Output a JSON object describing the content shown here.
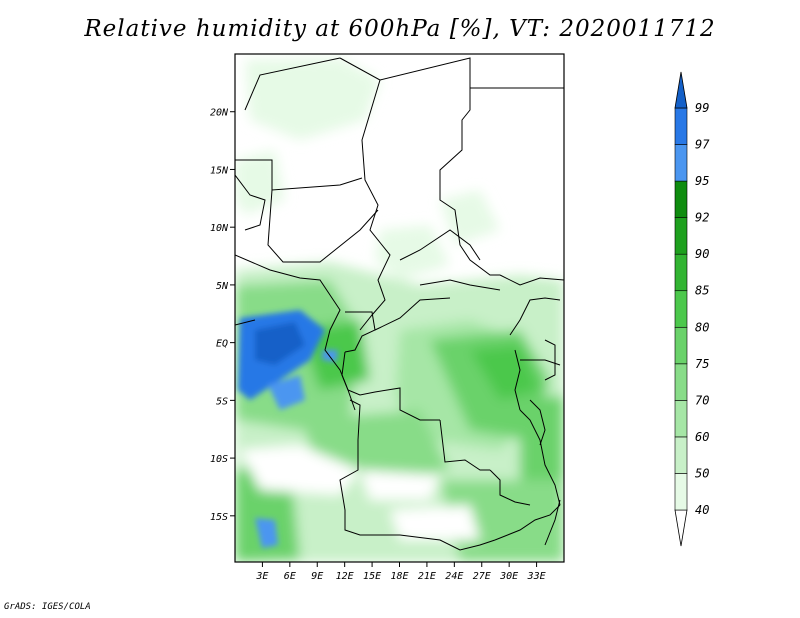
{
  "title": "Relative humidity at 600hPa [%], VT: 2020011712",
  "credit": "GrADS: IGES/COLA",
  "map": {
    "lon_range": [
      0,
      36
    ],
    "lat_range": [
      -19,
      25
    ],
    "lat_ticks": [
      "20N",
      "15N",
      "10N",
      "5N",
      "EQ",
      "5S",
      "10S",
      "15S"
    ],
    "lon_ticks": [
      "3E",
      "6E",
      "9E",
      "12E",
      "15E",
      "18E",
      "21E",
      "24E",
      "27E",
      "30E",
      "33E"
    ]
  },
  "colorbar": {
    "labels": [
      "40",
      "50",
      "60",
      "70",
      "75",
      "80",
      "85",
      "90",
      "92",
      "95",
      "97",
      "99"
    ],
    "colors": [
      "#ffffff",
      "#e6fae6",
      "#c8f0c8",
      "#a6e6a6",
      "#88dc88",
      "#6ad26a",
      "#4cc84c",
      "#32b432",
      "#1ea01e",
      "#0f8c0f",
      "#4b96f0",
      "#2878e6",
      "#1460c8"
    ]
  }
}
